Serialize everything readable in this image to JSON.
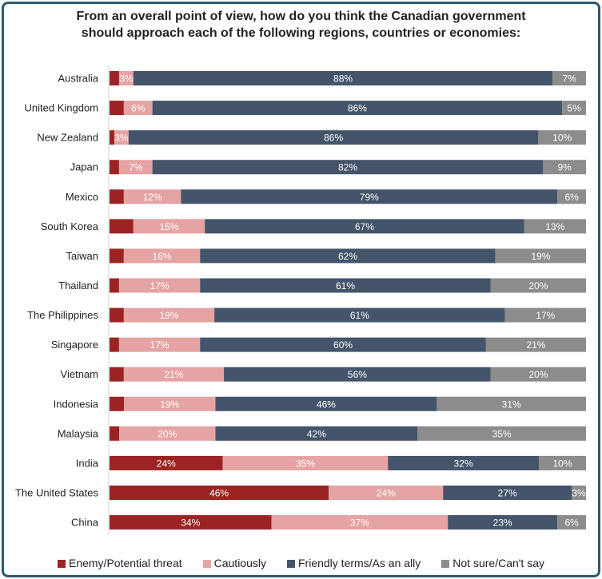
{
  "chart_data": {
    "type": "bar",
    "orientation": "horizontal",
    "stacked": true,
    "title": "From an overall point of view, how do you think the Canadian government should approach each of the following regions, countries or economies:",
    "categories": [
      "Australia",
      "United Kingdom",
      "New Zealand",
      "Japan",
      "Mexico",
      "South Korea",
      "Taiwan",
      "Thailand",
      "The Philippines",
      "Singapore",
      "Vietnam",
      "Indonesia",
      "Malaysia",
      "India",
      "The United States",
      "China"
    ],
    "series": [
      {
        "name": "Enemy/Potential threat",
        "color": "#9b2423",
        "values": [
          2,
          3,
          1,
          2,
          3,
          5,
          3,
          2,
          3,
          2,
          3,
          3,
          2,
          24,
          46,
          34
        ]
      },
      {
        "name": "Cautiously",
        "color": "#e6a3a3",
        "values": [
          3,
          6,
          3,
          7,
          12,
          15,
          16,
          17,
          19,
          17,
          21,
          19,
          20,
          35,
          24,
          37
        ]
      },
      {
        "name": "Friendly terms/As an ally",
        "color": "#44546a",
        "values": [
          88,
          86,
          86,
          82,
          79,
          67,
          62,
          61,
          61,
          60,
          56,
          46,
          42,
          32,
          27,
          23
        ]
      },
      {
        "name": "Not sure/Can't say",
        "color": "#8c8c8c",
        "values": [
          7,
          5,
          10,
          9,
          6,
          13,
          19,
          20,
          17,
          21,
          20,
          31,
          35,
          10,
          3,
          6
        ]
      }
    ],
    "value_suffix": "%",
    "legend_position": "bottom",
    "grid": false
  }
}
